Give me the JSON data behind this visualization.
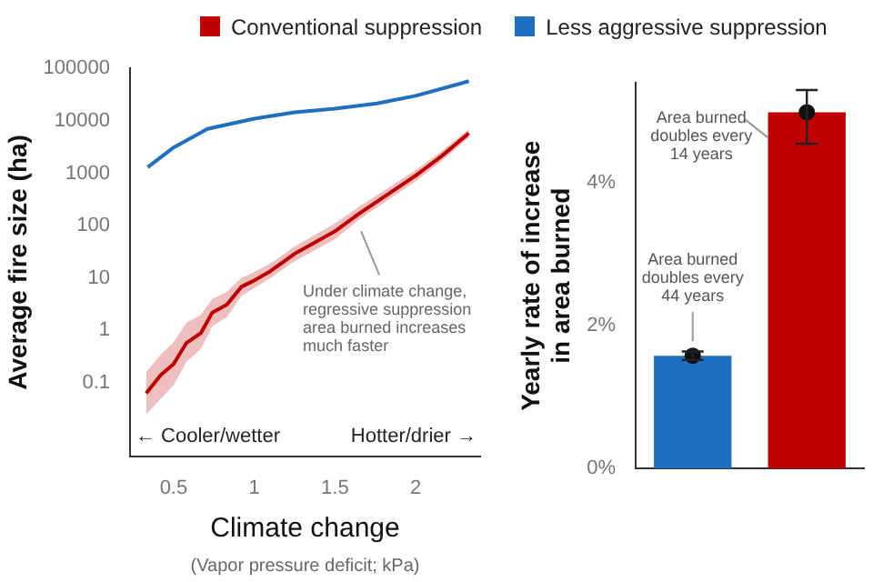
{
  "chart_data": [
    {
      "type": "line",
      "xlabel": "Climate change",
      "ylabel": "Average fire size (ha)",
      "log": "y",
      "legend": "top",
      "xlim": [
        0.23,
        2.4
      ],
      "xticks": [
        0.5,
        1.0,
        1.5,
        2.0
      ],
      "ylim": [
        0.004,
        100000
      ],
      "yticks": [
        0.1,
        1,
        10,
        100,
        1000,
        10000,
        100000
      ],
      "series": [
        {
          "name": "Conventional suppression",
          "color": "#c00000",
          "x": [
            0.33,
            0.42,
            0.5,
            0.58,
            0.67,
            0.74,
            0.83,
            0.92,
            1.0,
            1.1,
            1.25,
            1.5,
            1.65,
            2.0,
            2.16,
            2.33
          ],
          "values": [
            0.063,
            0.14,
            0.23,
            0.58,
            0.9,
            2.2,
            3.1,
            6.8,
            9,
            13.5,
            29,
            78,
            170,
            900,
            2100,
            5800
          ],
          "lower": [
            0.025,
            0.05,
            0.09,
            0.25,
            0.45,
            1.2,
            1.8,
            4.5,
            6.5,
            10,
            21,
            55,
            130,
            700,
            1700,
            4800
          ],
          "upper": [
            0.16,
            0.35,
            0.6,
            1.4,
            2,
            4,
            5.5,
            10,
            13,
            19,
            40,
            110,
            230,
            1150,
            2600,
            7000
          ]
        },
        {
          "name": "Less aggressive suppression",
          "color": "#1f6fc0",
          "x": [
            0.34,
            0.5,
            0.71,
            1.0,
            1.25,
            1.5,
            1.76,
            2.0,
            2.33
          ],
          "values": [
            1300,
            3100,
            7000,
            11000,
            14500,
            17000,
            21500,
            30000,
            57000
          ]
        }
      ],
      "annotations": [
        "Under climate change, regressive suppression area burned increases much faster",
        "← Cooler/wetter",
        "Hotter/drier →",
        "(Vapor pressure deficit; kPa)"
      ]
    },
    {
      "type": "bar",
      "ylabel": "Yearly rate of increase\nin area burned",
      "categories": [
        null,
        null
      ],
      "series": [
        {
          "type": "bar",
          "colors": [
            "#1f6fc0",
            "#c00000"
          ],
          "values": [
            1.58,
            4.99
          ]
        },
        {
          "type": "scatter",
          "color": "#111111",
          "marker": "circle",
          "values": [
            1.58,
            4.99
          ],
          "errors": [
            [
              1.52,
              1.64
            ],
            [
              4.55,
              5.3
            ]
          ]
        }
      ],
      "ylim": [
        0,
        5.4
      ],
      "yticks": [
        {
          "value": 0,
          "label": "0%"
        },
        {
          "value": 2,
          "label": "2%"
        },
        {
          "value": 4,
          "label": "4%"
        }
      ],
      "annotations": [
        "Area burned doubles every 44 years",
        "Area burned doubles every 14 years"
      ]
    }
  ]
}
